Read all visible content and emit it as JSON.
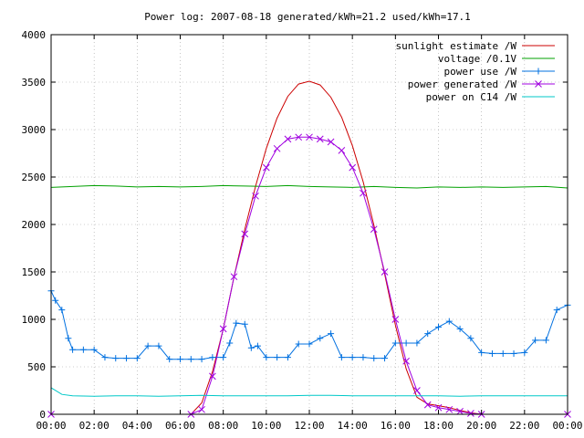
{
  "chart_data": {
    "type": "line",
    "title": "Power log: 2007-08-18 generated/kWh=21.2 used/kWh=17.1",
    "xlabel": "",
    "ylabel": "",
    "xlim": [
      0,
      24
    ],
    "ylim": [
      0,
      4000
    ],
    "grid": true,
    "legend_position": "top-right",
    "x_ticks": [
      "00:00",
      "02:00",
      "04:00",
      "06:00",
      "08:00",
      "10:00",
      "12:00",
      "14:00",
      "16:00",
      "18:00",
      "20:00",
      "22:00",
      "00:00"
    ],
    "y_ticks": [
      0,
      500,
      1000,
      1500,
      2000,
      2500,
      3000,
      3500,
      4000
    ],
    "series": [
      {
        "name": "sunlight estimate /W",
        "color": "#cc0000",
        "marker": "none",
        "x": [
          6.5,
          7,
          7.5,
          8,
          8.5,
          9,
          9.5,
          10,
          10.5,
          11,
          11.5,
          12,
          12.5,
          13,
          13.5,
          14,
          14.5,
          15,
          15.5,
          16,
          16.5,
          17,
          17.5,
          18,
          18.5,
          19,
          19.5,
          20
        ],
        "values": [
          0,
          120,
          450,
          900,
          1450,
          1950,
          2400,
          2800,
          3120,
          3350,
          3480,
          3510,
          3470,
          3340,
          3130,
          2830,
          2450,
          1990,
          1480,
          940,
          480,
          180,
          110,
          90,
          70,
          40,
          15,
          0
        ]
      },
      {
        "name": "voltage /0.1V",
        "color": "#00a000",
        "marker": "none",
        "x": [
          0,
          1,
          2,
          3,
          4,
          5,
          6,
          7,
          8,
          9,
          10,
          11,
          12,
          13,
          14,
          15,
          16,
          17,
          18,
          19,
          20,
          21,
          22,
          23,
          24
        ],
        "values": [
          2390,
          2400,
          2410,
          2405,
          2395,
          2400,
          2395,
          2400,
          2410,
          2405,
          2400,
          2410,
          2400,
          2395,
          2390,
          2400,
          2390,
          2385,
          2395,
          2390,
          2395,
          2390,
          2395,
          2400,
          2385
        ]
      },
      {
        "name": "power use /W",
        "color": "#0070e0",
        "marker": "plus",
        "x": [
          0,
          0.2,
          0.5,
          0.8,
          1,
          1.5,
          2,
          2.5,
          3,
          3.5,
          4,
          4.5,
          5,
          5.5,
          6,
          6.5,
          7,
          7.5,
          8,
          8.3,
          8.6,
          9,
          9.3,
          9.6,
          10,
          10.5,
          11,
          11.5,
          12,
          12.5,
          13,
          13.5,
          14,
          14.5,
          15,
          15.5,
          16,
          16.5,
          17,
          17.5,
          18,
          18.5,
          19,
          19.5,
          20,
          20.5,
          21,
          21.5,
          22,
          22.5,
          23,
          23.5,
          24
        ],
        "values": [
          1300,
          1200,
          1100,
          800,
          680,
          680,
          680,
          600,
          590,
          590,
          590,
          720,
          720,
          580,
          580,
          580,
          580,
          600,
          600,
          750,
          960,
          950,
          700,
          720,
          600,
          600,
          600,
          740,
          740,
          800,
          850,
          600,
          600,
          600,
          590,
          590,
          750,
          750,
          750,
          850,
          920,
          980,
          900,
          800,
          650,
          640,
          640,
          640,
          650,
          780,
          780,
          1100,
          1150
        ]
      },
      {
        "name": "power generated /W",
        "color": "#a000e0",
        "marker": "x",
        "x": [
          0,
          6.5,
          7,
          7.5,
          8,
          8.5,
          9,
          9.5,
          10,
          10.5,
          11,
          11.5,
          12,
          12.5,
          13,
          13.5,
          14,
          14.5,
          15,
          15.5,
          16,
          16.5,
          17,
          17.5,
          18,
          18.5,
          19,
          19.5,
          20,
          24
        ],
        "values": [
          0,
          0,
          50,
          400,
          900,
          1450,
          1900,
          2300,
          2600,
          2800,
          2900,
          2920,
          2920,
          2900,
          2870,
          2780,
          2600,
          2330,
          1950,
          1500,
          1000,
          560,
          250,
          100,
          70,
          50,
          30,
          10,
          0,
          0
        ]
      },
      {
        "name": "power on C14 /W",
        "color": "#00c8c8",
        "marker": "none",
        "x": [
          0,
          0.5,
          1,
          2,
          3,
          4,
          5,
          6,
          7,
          8,
          9,
          10,
          11,
          12,
          13,
          14,
          15,
          16,
          17,
          18,
          19,
          20,
          21,
          22,
          23,
          24
        ],
        "values": [
          280,
          210,
          195,
          190,
          195,
          195,
          190,
          195,
          200,
          195,
          195,
          195,
          195,
          200,
          200,
          195,
          195,
          195,
          195,
          195,
          190,
          195,
          195,
          195,
          195,
          195
        ]
      }
    ]
  }
}
